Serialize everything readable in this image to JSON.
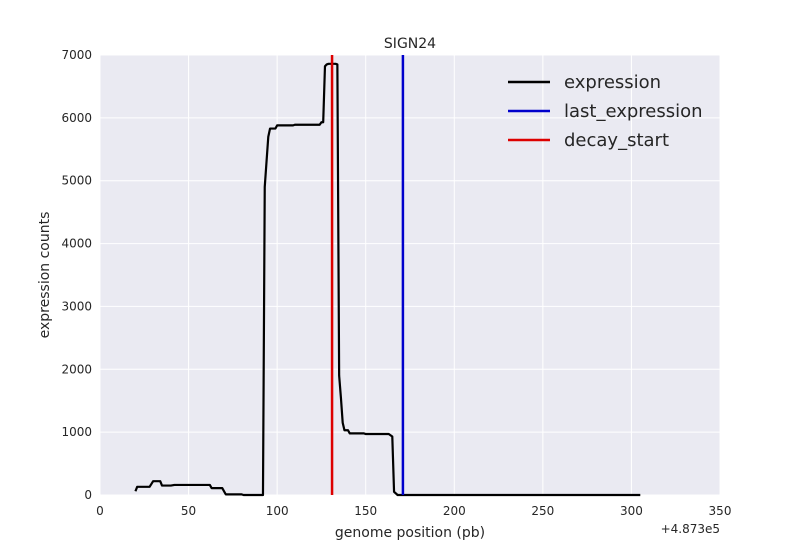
{
  "chart_data": {
    "type": "line",
    "title": "SIGN24",
    "xlabel": "genome position (pb)",
    "ylabel": "expression counts",
    "x_offset_label": "+4.873e5",
    "xlim": [
      0,
      350
    ],
    "ylim": [
      0,
      7000
    ],
    "xticks": [
      0,
      50,
      100,
      150,
      200,
      250,
      300,
      350
    ],
    "yticks": [
      0,
      1000,
      2000,
      3000,
      4000,
      5000,
      6000,
      7000
    ],
    "grid": true,
    "legend_position": "top-right",
    "series": [
      {
        "name": "expression",
        "color": "#000000",
        "kind": "line",
        "points": [
          [
            20,
            60
          ],
          [
            21,
            130
          ],
          [
            22,
            130
          ],
          [
            28,
            130
          ],
          [
            30,
            220
          ],
          [
            34,
            220
          ],
          [
            35,
            150
          ],
          [
            40,
            150
          ],
          [
            42,
            160
          ],
          [
            62,
            160
          ],
          [
            63,
            110
          ],
          [
            69,
            110
          ],
          [
            71,
            10
          ],
          [
            80,
            10
          ],
          [
            81,
            0
          ],
          [
            92,
            0
          ],
          [
            93,
            4900
          ],
          [
            94,
            5300
          ],
          [
            95,
            5700
          ],
          [
            96,
            5830
          ],
          [
            99,
            5830
          ],
          [
            100,
            5880
          ],
          [
            109,
            5880
          ],
          [
            110,
            5890
          ],
          [
            124,
            5890
          ],
          [
            125,
            5930
          ],
          [
            126,
            5930
          ],
          [
            127,
            6820
          ],
          [
            128,
            6850
          ],
          [
            129,
            6860
          ],
          [
            133,
            6860
          ],
          [
            134,
            6850
          ],
          [
            135,
            1900
          ],
          [
            136,
            1550
          ],
          [
            137,
            1150
          ],
          [
            138,
            1030
          ],
          [
            140,
            1030
          ],
          [
            141,
            980
          ],
          [
            149,
            980
          ],
          [
            150,
            970
          ],
          [
            163,
            970
          ],
          [
            164,
            950
          ],
          [
            165,
            930
          ],
          [
            166,
            50
          ],
          [
            168,
            0
          ],
          [
            305,
            0
          ]
        ]
      },
      {
        "name": "last_expression",
        "color": "#0000cc",
        "kind": "vline",
        "x": 171
      },
      {
        "name": "decay_start",
        "color": "#dd0000",
        "kind": "vline",
        "x": 131
      }
    ]
  }
}
